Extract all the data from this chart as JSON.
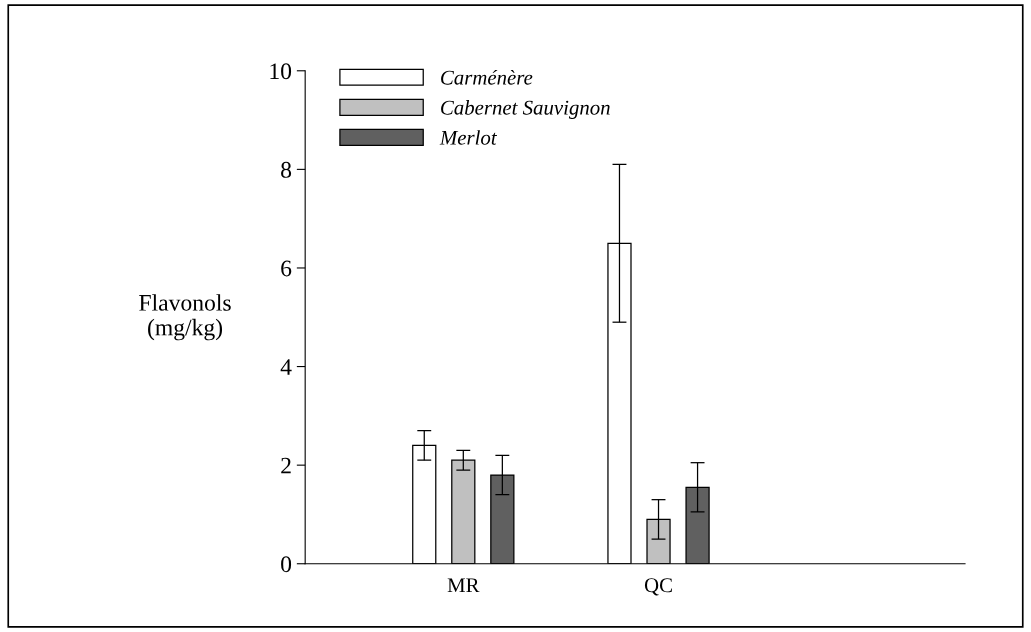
{
  "chart_data": {
    "type": "bar",
    "ylabel": "Flavonols\n(mg/kg)",
    "categories": [
      "MR",
      "QC"
    ],
    "series": [
      {
        "name": "Carménère",
        "color": "#ffffff",
        "values": [
          2.4,
          6.5
        ],
        "errors": [
          0.3,
          1.6
        ]
      },
      {
        "name": "Cabernet Sauvignon",
        "color": "#c0c0c0",
        "values": [
          2.1,
          0.9
        ],
        "errors": [
          0.2,
          0.4
        ]
      },
      {
        "name": "Merlot",
        "color": "#606060",
        "values": [
          1.8,
          1.55
        ],
        "errors": [
          0.4,
          0.5
        ]
      }
    ],
    "ylim": [
      0,
      10
    ],
    "yticks": [
      0,
      2,
      4,
      6,
      8,
      10
    ],
    "grid": false,
    "legend": "top left"
  }
}
